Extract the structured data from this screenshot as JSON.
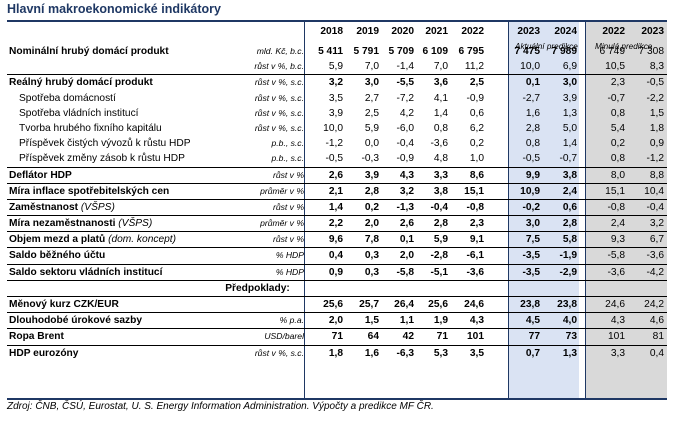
{
  "title": "Hlavní makroekonomické indikátory",
  "header": {
    "years": [
      "2018",
      "2019",
      "2020",
      "2021",
      "2022",
      "2023",
      "2024",
      "2022",
      "2023"
    ],
    "aktualni": "Aktuální predikce",
    "minula": "Minulá predikce"
  },
  "rows": [
    {
      "label": "Nominální hrubý domácí produkt",
      "unit": "mld. Kč, b.c.",
      "bold": true,
      "values": [
        "5 411",
        "5 791",
        "5 709",
        "6 109",
        "6 795",
        "7 475",
        "7 989",
        "6 749",
        "7 308"
      ]
    },
    {
      "label": "",
      "unit": "růst v %, b.c.",
      "values": [
        "5,9",
        "7,0",
        "-1,4",
        "7,0",
        "11,2",
        "10,0",
        "6,9",
        "10,5",
        "8,3"
      ]
    },
    {
      "label": "Reálný hrubý domácí produkt",
      "unit": "růst v %, s.c.",
      "bold": true,
      "sep": true,
      "values": [
        "3,2",
        "3,0",
        "-5,5",
        "3,6",
        "2,5",
        "0,1",
        "3,0",
        "2,3",
        "-0,5"
      ]
    },
    {
      "label": "Spotřeba domácností",
      "unit": "růst v %, s.c.",
      "indent": true,
      "values": [
        "3,5",
        "2,7",
        "-7,2",
        "4,1",
        "-0,9",
        "-2,7",
        "3,9",
        "-0,7",
        "-2,2"
      ]
    },
    {
      "label": "Spotřeba vládních institucí",
      "unit": "růst v %, s.c.",
      "indent": true,
      "values": [
        "3,9",
        "2,5",
        "4,2",
        "1,4",
        "0,6",
        "1,6",
        "1,3",
        "0,8",
        "1,5"
      ]
    },
    {
      "label": "Tvorba hrubého fixního kapitálu",
      "unit": "růst v %, s.c.",
      "indent": true,
      "values": [
        "10,0",
        "5,9",
        "-6,0",
        "0,8",
        "6,2",
        "2,8",
        "5,0",
        "5,4",
        "1,8"
      ]
    },
    {
      "label": "Příspěvek čistých vývozů k růstu HDP",
      "unit": "p.b., s.c.",
      "indent": true,
      "values": [
        "-1,2",
        "0,0",
        "-0,4",
        "-3,6",
        "0,2",
        "0,8",
        "1,4",
        "0,2",
        "0,9"
      ]
    },
    {
      "label": "Příspěvek změny zásob k růstu HDP",
      "unit": "p.b., s.c.",
      "indent": true,
      "values": [
        "-0,5",
        "-0,3",
        "-0,9",
        "4,8",
        "1,0",
        "-0,5",
        "-0,7",
        "0,8",
        "-1,2"
      ]
    },
    {
      "label": "Deflátor HDP",
      "unit": "růst v %",
      "bold": true,
      "sep": true,
      "values": [
        "2,6",
        "3,9",
        "4,3",
        "3,3",
        "8,6",
        "9,9",
        "3,8",
        "8,0",
        "8,8"
      ]
    },
    {
      "label": "Míra inflace spotřebitelských cen",
      "unit": "průměr v %",
      "bold": true,
      "sep": true,
      "values": [
        "2,1",
        "2,8",
        "3,2",
        "3,8",
        "15,1",
        "10,9",
        "2,4",
        "15,1",
        "10,4"
      ]
    },
    {
      "label": "Zaměstnanost",
      "labelExtra": " (VŠPS)",
      "unit": "růst v %",
      "bold": true,
      "sep": true,
      "values": [
        "1,4",
        "0,2",
        "-1,3",
        "-0,4",
        "-0,8",
        "-0,2",
        "0,6",
        "-0,8",
        "-0,4"
      ]
    },
    {
      "label": "Míra nezaměstnanosti",
      "labelExtra": " (VŠPS)",
      "unit": "průměr v %",
      "bold": true,
      "sep": true,
      "values": [
        "2,2",
        "2,0",
        "2,6",
        "2,8",
        "2,3",
        "3,0",
        "2,8",
        "2,4",
        "3,2"
      ]
    },
    {
      "label": "Objem mezd a platů",
      "labelExtra": " (dom. koncept)",
      "unit": "růst v %",
      "bold": true,
      "sep": true,
      "values": [
        "9,6",
        "7,8",
        "0,1",
        "5,9",
        "9,1",
        "7,5",
        "5,8",
        "9,3",
        "6,7"
      ]
    },
    {
      "label": "Saldo běžného účtu",
      "unit": "% HDP",
      "bold": true,
      "sep": true,
      "values": [
        "0,4",
        "0,3",
        "2,0",
        "-2,8",
        "-6,1",
        "-3,5",
        "-1,9",
        "-5,8",
        "-3,6"
      ]
    },
    {
      "label": "Saldo sektoru vládních institucí",
      "unit": "% HDP",
      "bold": true,
      "sep": true,
      "values": [
        "0,9",
        "0,3",
        "-5,8",
        "-5,1",
        "-3,6",
        "-3,5",
        "-2,9",
        "-3,6",
        "-4,2"
      ]
    },
    {
      "center": "Předpoklady:",
      "sep": true
    },
    {
      "label": "Měnový kurz CZK/EUR",
      "unit": "",
      "bold": true,
      "sep": true,
      "values": [
        "25,6",
        "25,7",
        "26,4",
        "25,6",
        "24,6",
        "23,8",
        "23,8",
        "24,6",
        "24,2"
      ]
    },
    {
      "label": "Dlouhodobé úrokové sazby",
      "unit": "% p.a.",
      "bold": true,
      "sep": true,
      "values": [
        "2,0",
        "1,5",
        "1,1",
        "1,9",
        "4,3",
        "4,5",
        "4,0",
        "4,3",
        "4,6"
      ]
    },
    {
      "label": "Ropa Brent",
      "unit": "USD/barel",
      "bold": true,
      "sep": true,
      "values": [
        "71",
        "64",
        "42",
        "71",
        "101",
        "77",
        "73",
        "101",
        "81"
      ]
    },
    {
      "label": "HDP eurozóny",
      "unit": "růst v %, s.c.",
      "bold": true,
      "sep": true,
      "values": [
        "1,8",
        "1,6",
        "-6,3",
        "5,3",
        "3,5",
        "0,7",
        "1,3",
        "3,3",
        "0,4"
      ]
    }
  ],
  "source": "Zdroj: ČNB, ČSÚ, Eurostat, U. S. Energy Information Administration. Výpočty a predikce MF ČR."
}
